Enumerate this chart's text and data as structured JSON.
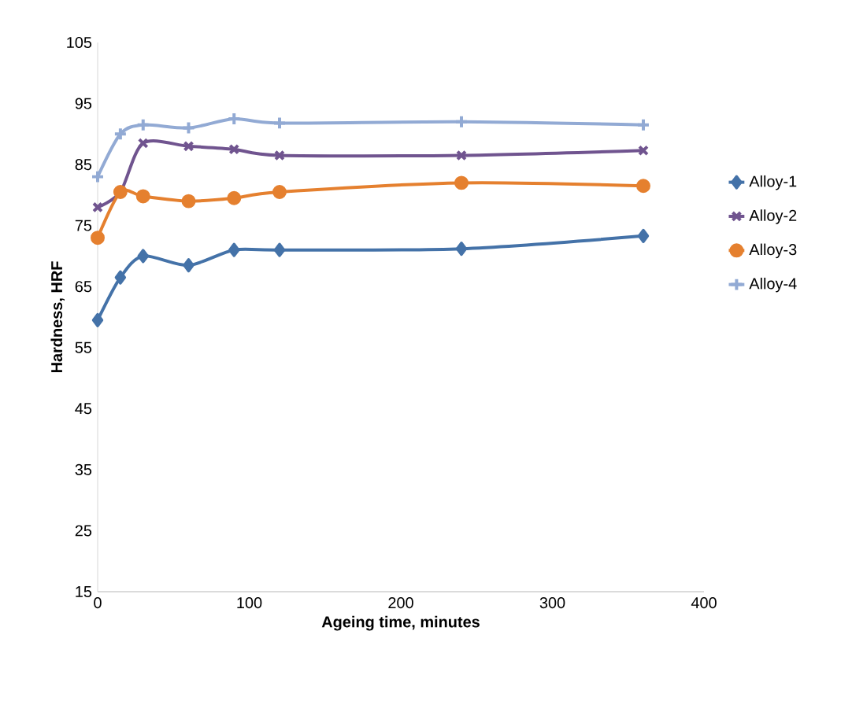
{
  "chart_data": {
    "type": "line",
    "xlabel": "Ageing time, minutes",
    "ylabel": "Hardness, HRF",
    "x": [
      0,
      15,
      30,
      60,
      90,
      120,
      240,
      360
    ],
    "xlim": [
      0,
      400
    ],
    "xticks": [
      0,
      100,
      200,
      300,
      400
    ],
    "ylim": [
      15,
      105
    ],
    "yticks": [
      15,
      25,
      35,
      45,
      55,
      65,
      75,
      85,
      95,
      105
    ],
    "grid": false,
    "legend": "right",
    "line_style": "solid",
    "series": [
      {
        "name": "Alloy-1",
        "color": "#4472a8",
        "marker": "diamond",
        "values": [
          59.5,
          66.5,
          70,
          68.5,
          71,
          71,
          71.2,
          73.3
        ]
      },
      {
        "name": "Alloy-2",
        "color": "#70548f",
        "marker": "cross",
        "values": [
          78,
          80.5,
          88.5,
          88,
          87.5,
          86.5,
          86.5,
          87.3
        ]
      },
      {
        "name": "Alloy-3",
        "color": "#e5802f",
        "marker": "circle",
        "values": [
          73,
          80.5,
          79.8,
          79,
          79.5,
          80.5,
          82,
          81.5
        ]
      },
      {
        "name": "Alloy-4",
        "color": "#92aad4",
        "marker": "plus",
        "values": [
          83,
          90,
          91.5,
          91,
          92.5,
          91.8,
          92,
          91.5
        ]
      }
    ]
  }
}
